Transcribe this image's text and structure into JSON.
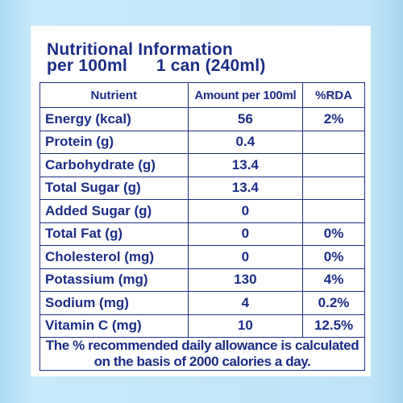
{
  "heading": {
    "line1": "Nutritional Information",
    "per": "per 100ml",
    "pack": "1 can (240ml)"
  },
  "table": {
    "headers": {
      "nutrient": "Nutrient",
      "amount": "Amount per 100ml",
      "rda": "%RDA"
    },
    "rows": [
      {
        "name": "Energy (kcal)",
        "amount": "56",
        "rda": "2%"
      },
      {
        "name": "Protein (g)",
        "amount": "0.4",
        "rda": ""
      },
      {
        "name": "Carbohydrate (g)",
        "amount": "13.4",
        "rda": ""
      },
      {
        "name": "Total Sugar (g)",
        "amount": "13.4",
        "rda": ""
      },
      {
        "name": "Added Sugar (g)",
        "amount": "0",
        "rda": ""
      },
      {
        "name": "Total Fat (g)",
        "amount": "0",
        "rda": "0%"
      },
      {
        "name": "Cholesterol (mg)",
        "amount": "0",
        "rda": "0%"
      },
      {
        "name": "Potassium (mg)",
        "amount": "130",
        "rda": "4%"
      },
      {
        "name": "Sodium (mg)",
        "amount": "4",
        "rda": "0.2%"
      },
      {
        "name": "Vitamin C (mg)",
        "amount": "10",
        "rda": "12.5%"
      }
    ],
    "footnote": "The % recommended daily allowance is calculated on the basis of 2000 calories a day."
  },
  "colors": {
    "text": "#1b2d86",
    "background": "#bfe4f7",
    "panel": "#ffffff"
  }
}
